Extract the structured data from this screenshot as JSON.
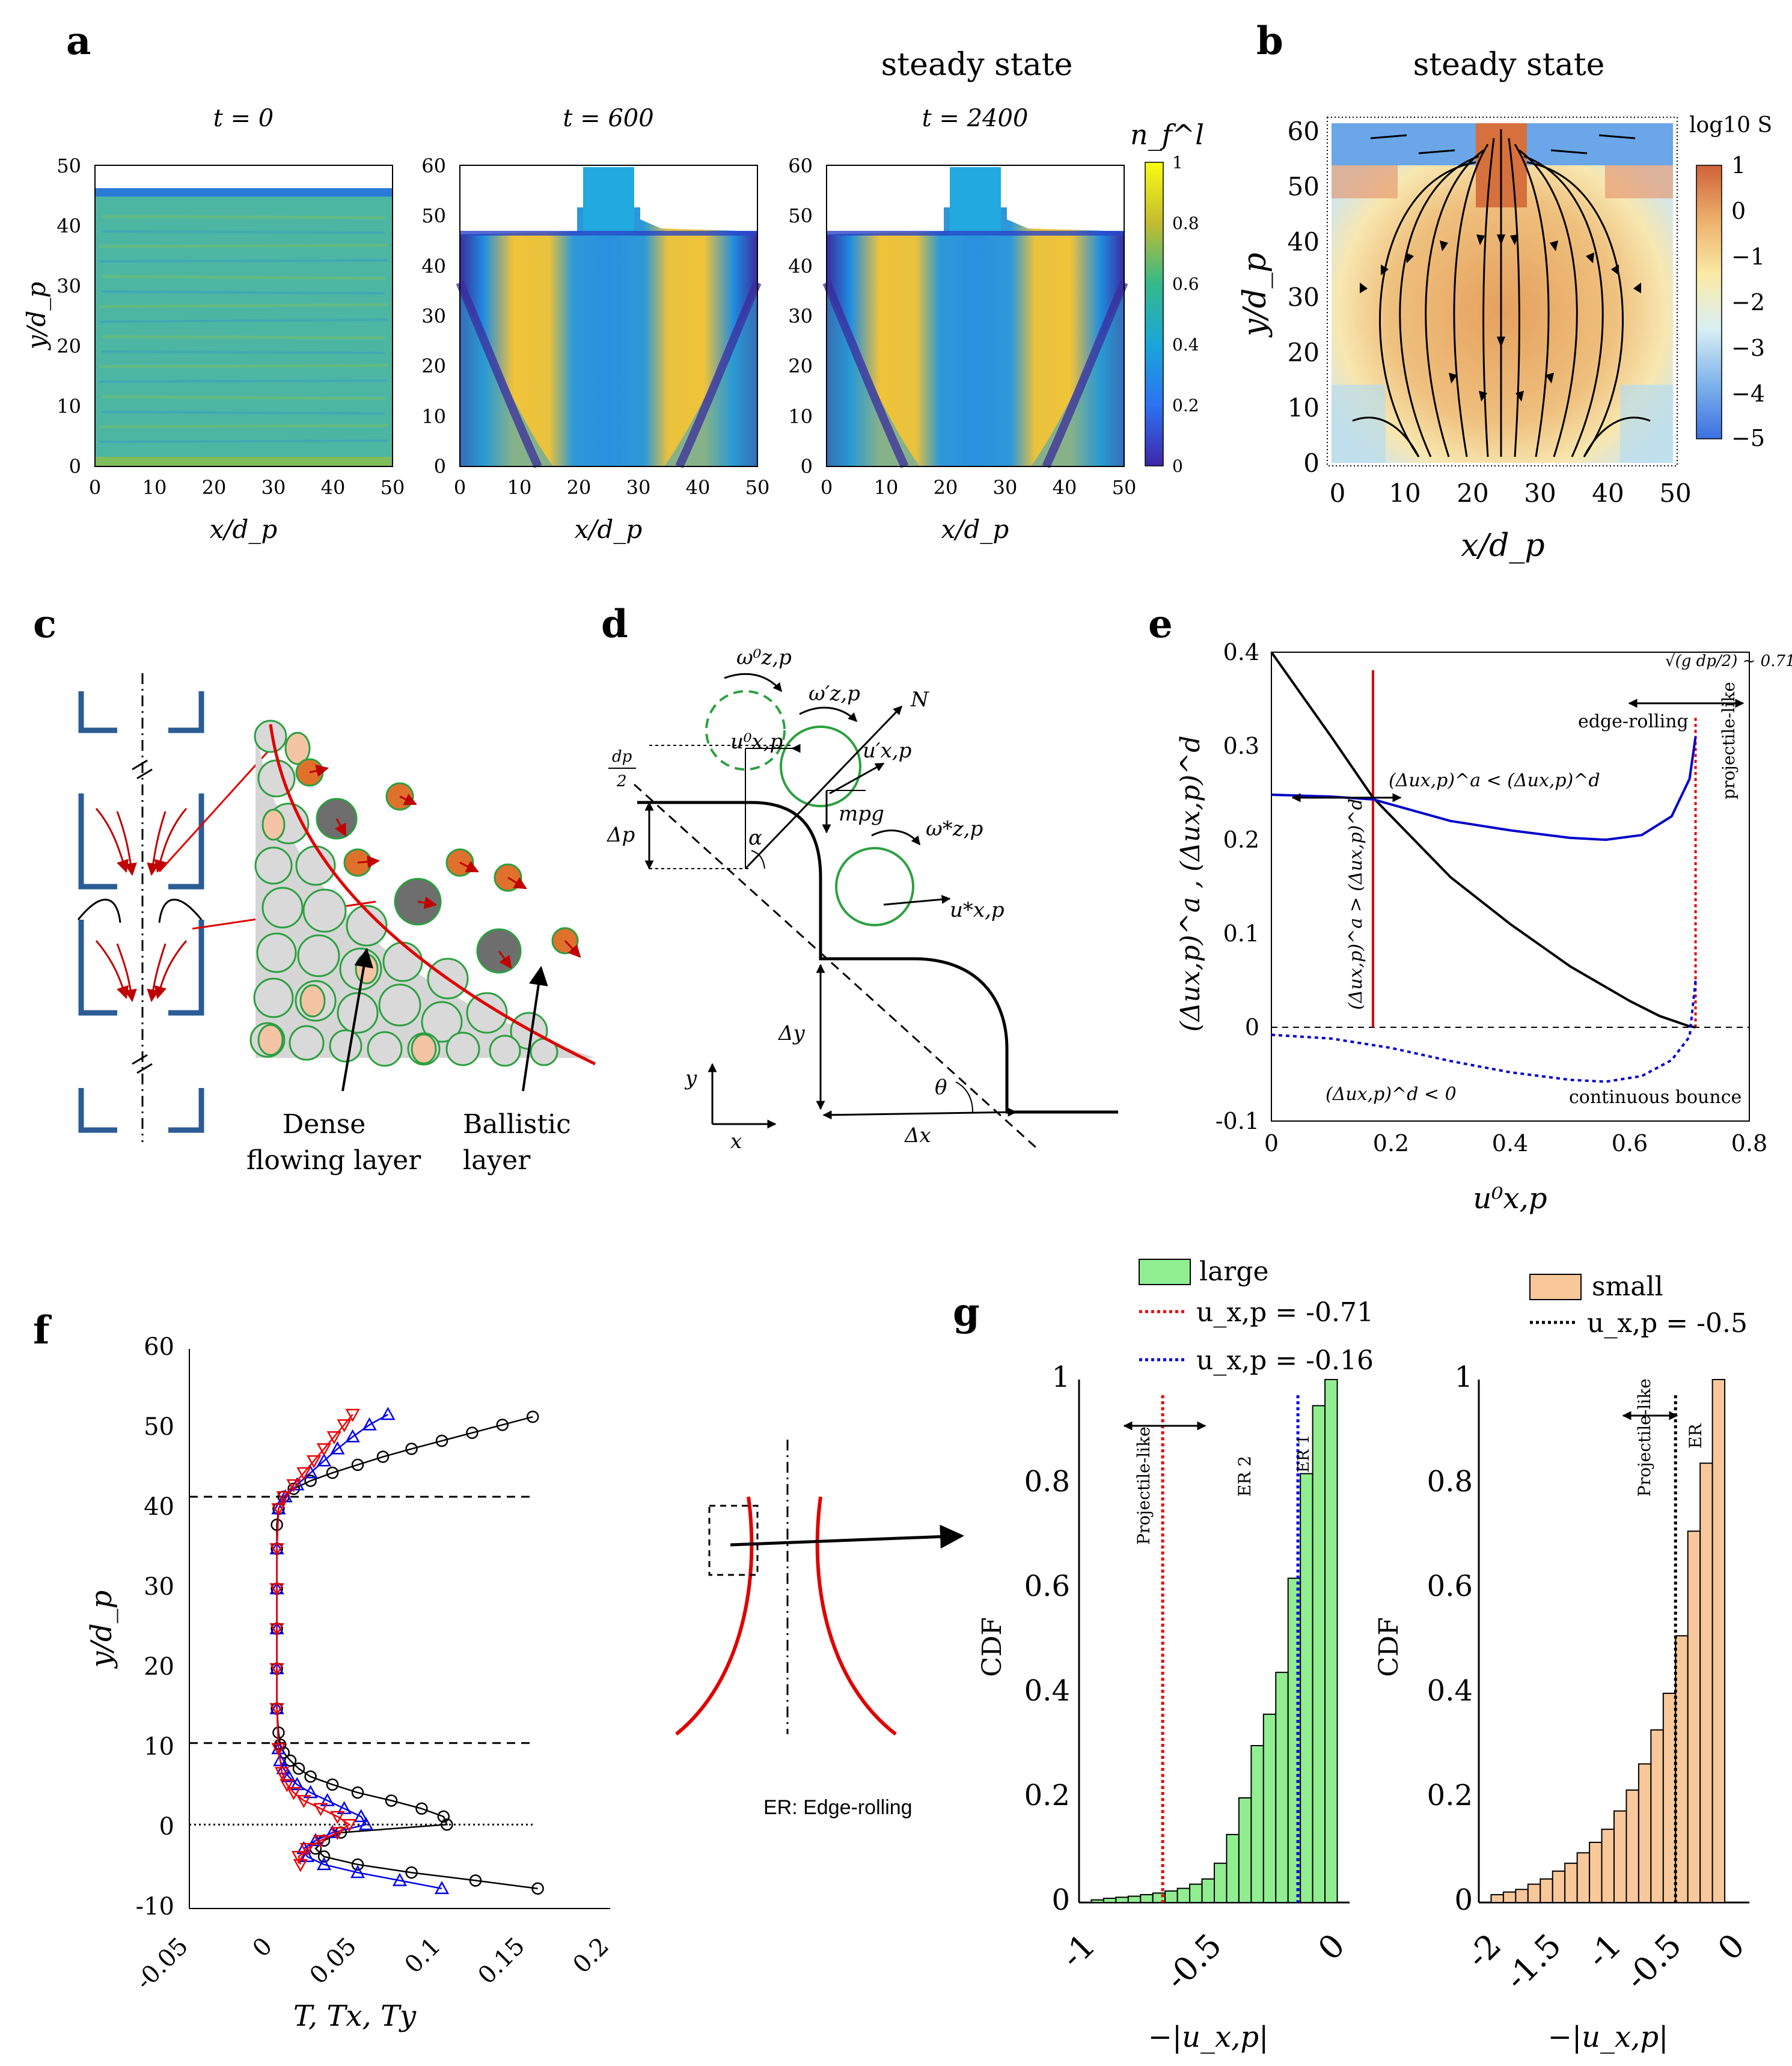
{
  "panel_labels": {
    "a": "a",
    "b": "b",
    "c": "c",
    "d": "d",
    "e": "e",
    "f": "f",
    "g": "g"
  },
  "panel_a": {
    "header": "steady state",
    "titles": [
      "t = 0",
      "t = 600",
      "t = 2400"
    ],
    "xlabel": "x/d_p",
    "ylabel": "y/d_p",
    "xticks": [
      "0",
      "10",
      "20",
      "30",
      "40",
      "50"
    ],
    "yticks_left": [
      "0",
      "10",
      "20",
      "30",
      "40",
      "50"
    ],
    "yticks": [
      "0",
      "10",
      "20",
      "30",
      "40",
      "50",
      "60"
    ],
    "colorbar_label": "n_f^l",
    "colorbar_ticks": [
      "0",
      "0.2",
      "0.4",
      "0.6",
      "0.8",
      "1"
    ]
  },
  "panel_b": {
    "title": "steady state",
    "xlabel": "x/d_p",
    "ylabel": "y/d_p",
    "xticks": [
      "0",
      "10",
      "20",
      "30",
      "40",
      "50"
    ],
    "yticks": [
      "0",
      "10",
      "20",
      "30",
      "40",
      "50",
      "60"
    ],
    "colorbar_label": "log10 S",
    "colorbar_ticks": [
      "1",
      "0",
      "−1",
      "−2",
      "−3",
      "−4",
      "−5"
    ]
  },
  "panel_c": {
    "dense_label_1": "Dense",
    "dense_label_2": "flowing layer",
    "ballistic_label_1": "Ballistic",
    "ballistic_label_2": "layer"
  },
  "panel_d": {
    "omega0": "ω⁰z,p",
    "omega_prime": "ω′z,p",
    "omega_star": "ω*z,p",
    "u0": "u⁰x,p",
    "u_prime": "u′x,p",
    "u_star": "u*x,p",
    "N": "N",
    "mg": "mpg",
    "alpha": "α",
    "theta": "θ",
    "delta_p": "Δp",
    "delta_y": "Δy",
    "delta_x": "Δx",
    "dp_half_num": "dp",
    "dp_half_den": "2",
    "x": "x",
    "y": "y"
  },
  "panel_e": {
    "chart_data": {
      "type": "line",
      "xlabel": "u⁰x,p",
      "ylabel": "(Δux,p)^a , (Δux,p)^d",
      "xlim": [
        0,
        0.8
      ],
      "ylim": [
        -0.1,
        0.4
      ],
      "xticks": [
        "0",
        "0.2",
        "0.4",
        "0.6",
        "0.8"
      ],
      "yticks": [
        "-0.1",
        "0",
        "0.1",
        "0.2",
        "0.3",
        "0.4"
      ],
      "series": [
        {
          "name": "(Δux,p)^a",
          "color": "#000000",
          "x": [
            0,
            0.1,
            0.17,
            0.3,
            0.4,
            0.5,
            0.6,
            0.65,
            0.7,
            0.71
          ],
          "y": [
            0.4,
            0.31,
            0.245,
            0.16,
            0.11,
            0.065,
            0.028,
            0.012,
            0.001,
            0
          ]
        },
        {
          "name": "(Δux,p)^d upper",
          "color": "#0000cc",
          "x": [
            0,
            0.1,
            0.17,
            0.3,
            0.4,
            0.5,
            0.56,
            0.62,
            0.67,
            0.7,
            0.71
          ],
          "y": [
            0.248,
            0.246,
            0.243,
            0.22,
            0.21,
            0.202,
            0.2,
            0.205,
            0.225,
            0.265,
            0.31
          ]
        },
        {
          "name": "(Δux,p)^d lower",
          "color": "#0000cc",
          "dashed": true,
          "x": [
            0,
            0.1,
            0.2,
            0.3,
            0.4,
            0.5,
            0.56,
            0.62,
            0.67,
            0.7,
            0.71
          ],
          "y": [
            -0.008,
            -0.012,
            -0.022,
            -0.036,
            -0.048,
            -0.056,
            -0.058,
            -0.052,
            -0.035,
            -0.01,
            0.05
          ]
        }
      ],
      "annotations": {
        "ineq_top": "(Δux,p)^a < (Δux,p)^d",
        "ineq_vertical": "(Δux,p)^a > (Δux,p)^d",
        "neg": "(Δux,p)^d < 0",
        "edge_rolling": "edge-rolling",
        "projectile_like": "projectile-like",
        "continuous_bounce": "continuous bounce",
        "sqrt_label": "√(g dp/2) ~ 0.71"
      },
      "vlines": [
        {
          "x": 0.17,
          "color": "#e00000"
        },
        {
          "x": 0.71,
          "color": "#e00000",
          "dashed": true
        }
      ]
    }
  },
  "panel_f": {
    "chart_data": {
      "type": "line",
      "xlabel": "T, Tx, Ty",
      "ylabel": "y/d_p",
      "xlim": [
        -0.05,
        0.2
      ],
      "ylim": [
        -10,
        60
      ],
      "xticks": [
        "-0.05",
        "0",
        "0.05",
        "0.1",
        "0.15",
        "0.2"
      ],
      "yticks": [
        "-10",
        "0",
        "10",
        "20",
        "30",
        "40",
        "50",
        "60"
      ],
      "hlines": [
        41.5,
        10.7
      ],
      "dotted_hline": 0.5,
      "series": [
        {
          "name": "T",
          "color": "#000000",
          "marker": "circle",
          "points": [
            [
              0.157,
              -7.5
            ],
            [
              0.12,
              -6.5
            ],
            [
              0.082,
              -5.5
            ],
            [
              0.05,
              -4.5
            ],
            [
              0.03,
              -3.5
            ],
            [
              0.025,
              -2.5
            ],
            [
              0.03,
              -1.5
            ],
            [
              0.04,
              -0.5
            ],
            [
              0.103,
              0.5
            ],
            [
              0.101,
              1.5
            ],
            [
              0.088,
              2.5
            ],
            [
              0.07,
              3.5
            ],
            [
              0.05,
              4.5
            ],
            [
              0.035,
              5.5
            ],
            [
              0.022,
              6.5
            ],
            [
              0.015,
              7.5
            ],
            [
              0.01,
              8.5
            ],
            [
              0.006,
              9.5
            ],
            [
              0.004,
              10.5
            ],
            [
              0.003,
              12
            ],
            [
              0.002,
              15
            ],
            [
              0.002,
              20
            ],
            [
              0.002,
              25
            ],
            [
              0.002,
              30
            ],
            [
              0.002,
              35
            ],
            [
              0.002,
              38
            ],
            [
              0.003,
              40
            ],
            [
              0.006,
              41.5
            ],
            [
              0.012,
              42.5
            ],
            [
              0.022,
              43.5
            ],
            [
              0.035,
              44.5
            ],
            [
              0.05,
              45.5
            ],
            [
              0.065,
              46.5
            ],
            [
              0.082,
              47.5
            ],
            [
              0.1,
              48.5
            ],
            [
              0.118,
              49.5
            ],
            [
              0.136,
              50.5
            ],
            [
              0.154,
              51.5
            ]
          ]
        },
        {
          "name": "Tx",
          "color": "#0000ee",
          "marker": "triangle-up",
          "points": [
            [
              0.1,
              -7.5
            ],
            [
              0.075,
              -6.5
            ],
            [
              0.05,
              -5.5
            ],
            [
              0.03,
              -4.5
            ],
            [
              0.02,
              -3.5
            ],
            [
              0.018,
              -2.5
            ],
            [
              0.025,
              -1.5
            ],
            [
              0.035,
              -0.5
            ],
            [
              0.055,
              0.5
            ],
            [
              0.052,
              1.5
            ],
            [
              0.042,
              2.5
            ],
            [
              0.032,
              3.5
            ],
            [
              0.022,
              4.5
            ],
            [
              0.014,
              5.5
            ],
            [
              0.009,
              6.5
            ],
            [
              0.006,
              7.5
            ],
            [
              0.004,
              8.5
            ],
            [
              0.003,
              10
            ],
            [
              0.002,
              15
            ],
            [
              0.002,
              20
            ],
            [
              0.002,
              25
            ],
            [
              0.002,
              30
            ],
            [
              0.002,
              35
            ],
            [
              0.003,
              40
            ],
            [
              0.007,
              41.5
            ],
            [
              0.014,
              43
            ],
            [
              0.022,
              44.5
            ],
            [
              0.03,
              46
            ],
            [
              0.038,
              47.5
            ],
            [
              0.047,
              49
            ],
            [
              0.057,
              50.5
            ],
            [
              0.068,
              51.8
            ]
          ]
        },
        {
          "name": "Ty",
          "color": "#ee0000",
          "marker": "triangle-down",
          "points": [
            [
              0.016,
              -4.5
            ],
            [
              0.015,
              -3.5
            ],
            [
              0.02,
              -2.5
            ],
            [
              0.028,
              -1.5
            ],
            [
              0.038,
              -0.5
            ],
            [
              0.045,
              0.5
            ],
            [
              0.038,
              1.5
            ],
            [
              0.028,
              2.5
            ],
            [
              0.018,
              3.5
            ],
            [
              0.012,
              4.5
            ],
            [
              0.008,
              5.5
            ],
            [
              0.005,
              7
            ],
            [
              0.003,
              10
            ],
            [
              0.002,
              15
            ],
            [
              0.002,
              20
            ],
            [
              0.002,
              25
            ],
            [
              0.002,
              30
            ],
            [
              0.002,
              35
            ],
            [
              0.003,
              40
            ],
            [
              0.006,
              41.5
            ],
            [
              0.012,
              43
            ],
            [
              0.018,
              44.5
            ],
            [
              0.024,
              46
            ],
            [
              0.03,
              47.5
            ],
            [
              0.036,
              49
            ],
            [
              0.042,
              50.5
            ],
            [
              0.047,
              51.8
            ]
          ]
        }
      ]
    }
  },
  "panel_g": {
    "er_label": "ER: Edge-rolling",
    "legend_large": "large",
    "legend_small": "small",
    "legend_red": "u_x,p = -0.71",
    "legend_blue": "u_x,p = -0.16",
    "legend_black": "u_x,p = -0.5",
    "chart_data": [
      {
        "type": "bar",
        "name": "large",
        "color": "#90ee90",
        "xlabel": "−|u_x,p|",
        "ylabel": "CDF",
        "xlim": [
          -1.05,
          0.05
        ],
        "ylim": [
          0,
          1
        ],
        "xticks": [
          "-1",
          "-0.5",
          "0"
        ],
        "yticks": [
          "0",
          "0.2",
          "0.4",
          "0.6",
          "0.8",
          "1"
        ],
        "bins_left": [
          -1.0,
          -0.95,
          -0.9,
          -0.85,
          -0.8,
          -0.75,
          -0.7,
          -0.65,
          -0.6,
          -0.55,
          -0.5,
          -0.45,
          -0.4,
          -0.35,
          -0.3,
          -0.25,
          -0.2,
          -0.15,
          -0.1,
          -0.05
        ],
        "bin_width": 0.05,
        "values": [
          0.005,
          0.008,
          0.01,
          0.012,
          0.015,
          0.018,
          0.022,
          0.027,
          0.035,
          0.045,
          0.075,
          0.13,
          0.2,
          0.3,
          0.36,
          0.44,
          0.62,
          0.82,
          0.95,
          1.0
        ],
        "vlines": [
          {
            "x": -0.71,
            "color": "#ee0000"
          },
          {
            "x": -0.16,
            "color": "#0000ee"
          }
        ],
        "annotations": [
          "Projectile-like",
          "ER 2",
          "ER 1"
        ]
      },
      {
        "type": "bar",
        "name": "small",
        "color": "#f8c89a",
        "xlabel": "−|u_x,p|",
        "ylabel": "CDF",
        "xlim": [
          -2.1,
          0.1
        ],
        "ylim": [
          0,
          1
        ],
        "xticks": [
          "-2",
          "-1.5",
          "-1",
          "-0.5",
          "0"
        ],
        "yticks": [
          "0",
          "0.2",
          "0.4",
          "0.6",
          "0.8",
          "1"
        ],
        "bins_left": [
          -2.0,
          -1.9,
          -1.8,
          -1.7,
          -1.6,
          -1.5,
          -1.4,
          -1.3,
          -1.2,
          -1.1,
          -1.0,
          -0.9,
          -0.8,
          -0.7,
          -0.6,
          -0.5,
          -0.4,
          -0.3,
          -0.2
        ],
        "bin_width": 0.1,
        "values": [
          0.015,
          0.02,
          0.025,
          0.035,
          0.045,
          0.06,
          0.075,
          0.095,
          0.115,
          0.14,
          0.175,
          0.215,
          0.265,
          0.33,
          0.4,
          0.51,
          0.71,
          0.84,
          1.0
        ],
        "vlines": [
          {
            "x": -0.5,
            "color": "#000000"
          }
        ],
        "annotations": [
          "Projectile-like",
          "ER"
        ]
      }
    ]
  }
}
